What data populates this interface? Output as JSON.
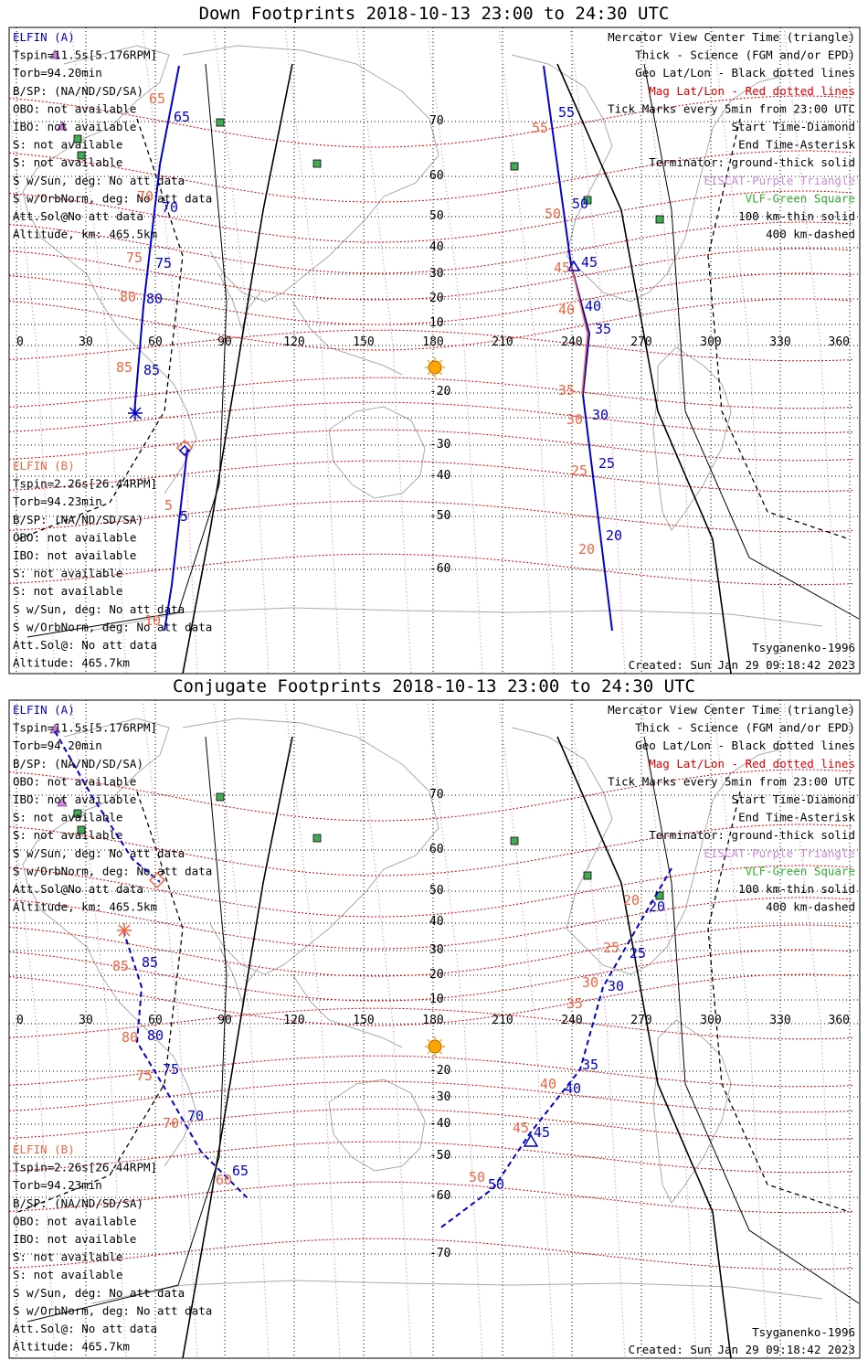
{
  "panels": [
    {
      "id": "down",
      "title": "Down Footprints 2018-10-13 23:00 to 24:30 UTC",
      "left_a": [
        "ELFIN (A)",
        "Tspin=11.5s[5.176RPM]",
        "Torb=94.20min",
        "B/SP: (NA/ND/SD/SA)",
        "OBO: not available",
        "IBO: not available",
        "S: not available",
        "S: not available",
        "S w/Sun, deg: No att data",
        "S w/OrbNorm, deg: No att data",
        "Att.Sol@No att data",
        "Altitude, km: 465.5km"
      ],
      "left_b": [
        "ELFIN (B)",
        "Tspin=2.26s[26.44RPM]",
        "Torb=94.23min",
        "B/SP: (NA/ND/SD/SA)",
        "OBO: not available",
        "IBO: not available",
        "S: not available",
        "S: not available",
        "S w/Sun, deg: No att data",
        "S w/OrbNorm, deg: No att data",
        "Att.Sol@: No att data",
        "Altitude: 465.7km"
      ],
      "bottom_right": [
        "Tsyganenko-1996",
        "Created: Sun Jan 29 09:18:42 2023"
      ]
    },
    {
      "id": "conjugate",
      "title": "Conjugate Footprints 2018-10-13 23:00 to 24:30 UTC",
      "left_a": [
        "ELFIN (A)",
        "Tspin=11.5s[5.176RPM]",
        "Torb=94.20min",
        "B/SP: (NA/ND/SD/SA)",
        "OBO: not available",
        "IBO: not available",
        "S: not available",
        "S: not available",
        "S w/Sun, deg: No att data",
        "S w/OrbNorm, deg: No att data",
        "Att.Sol@No att data",
        "Altitude, km: 465.5km"
      ],
      "left_b": [
        "ELFIN (B)",
        "Tspin=2.26s[26.44RPM]",
        "Torb=94.23min",
        "B/SP: (NA/ND/SD/SA)",
        "OBO: not available",
        "IBO: not available",
        "S: not available",
        "S: not available",
        "S w/Sun, deg: No att data",
        "S w/OrbNorm, deg: No att data",
        "Att.Sol@: No att data",
        "Altitude: 465.7km"
      ],
      "bottom_right": [
        "Tsyganenko-1996",
        "Created: Sun Jan 29 09:18:42 2023"
      ]
    }
  ],
  "legend": [
    {
      "text": "Mercator View Center Time (triangle)",
      "color": "#000000"
    },
    {
      "text": "Thick - Science (FGM and/or EPD)",
      "color": "#000000"
    },
    {
      "text": "Geo Lat/Lon - Black dotted lines",
      "color": "#000000"
    },
    {
      "text": "Mag Lat/Lon - Red dotted lines",
      "color": "#dd0000"
    },
    {
      "text": "Tick Marks every 5min from 23:00 UTC",
      "color": "#000000"
    },
    {
      "text": "Start Time-Diamond",
      "color": "#000000"
    },
    {
      "text": "End Time-Asterisk",
      "color": "#000000"
    },
    {
      "text": "Terminator: ground-thick solid",
      "color": "#000000"
    },
    {
      "text": "EISCAT-Purple Triangle",
      "color": "#cc88dd"
    },
    {
      "text": "VLF-Green Square",
      "color": "#33aa33"
    },
    {
      "text": "100 km-thin solid",
      "color": "#000000"
    },
    {
      "text": "400 km-dashed",
      "color": "#000000"
    }
  ],
  "map": {
    "lon_range": [
      0,
      360
    ],
    "lon_ticks": [
      "0",
      "30",
      "60",
      "90",
      "120",
      "150",
      "180",
      "210",
      "240",
      "270",
      "300",
      "330",
      "360"
    ],
    "lat_labels": [
      "70",
      "60",
      "50",
      "40",
      "30",
      "20",
      "10",
      "-20",
      "-30",
      "-40",
      "-50",
      "-60",
      "-70"
    ],
    "colors": {
      "elfin_a": "#0000cc",
      "elfin_b": "#ee6644",
      "mag_grid": "#dd0000",
      "geo_grid": "#000000",
      "eiscat": "#cc88dd",
      "vlf": "#44aa55",
      "sun": "#ffa500",
      "coast": "#aaaaaa"
    },
    "vlf_stations": [
      [
        88,
        67
      ],
      [
        131,
        61
      ],
      [
        218,
        61
      ],
      [
        256,
        55
      ],
      [
        274,
        52
      ],
      [
        26,
        64
      ],
      [
        28,
        60
      ]
    ]
  },
  "down_labels": {
    "a": [
      "65",
      "70",
      "75",
      "80",
      "85",
      "55",
      "50",
      "45",
      "40",
      "35",
      "30",
      "25",
      "20"
    ],
    "b": [
      "65",
      "70",
      "75",
      "80",
      "85",
      "5",
      "10",
      "55",
      "50",
      "45",
      "40",
      "35",
      "30",
      "25",
      "20"
    ]
  },
  "conj_labels": {
    "a": [
      "85",
      "80",
      "75",
      "70",
      "65",
      "20",
      "25",
      "30",
      "35",
      "40",
      "45",
      "50"
    ],
    "b": [
      "85",
      "80",
      "75",
      "70",
      "60",
      "20",
      "25",
      "30",
      "35",
      "40",
      "45",
      "50"
    ]
  }
}
